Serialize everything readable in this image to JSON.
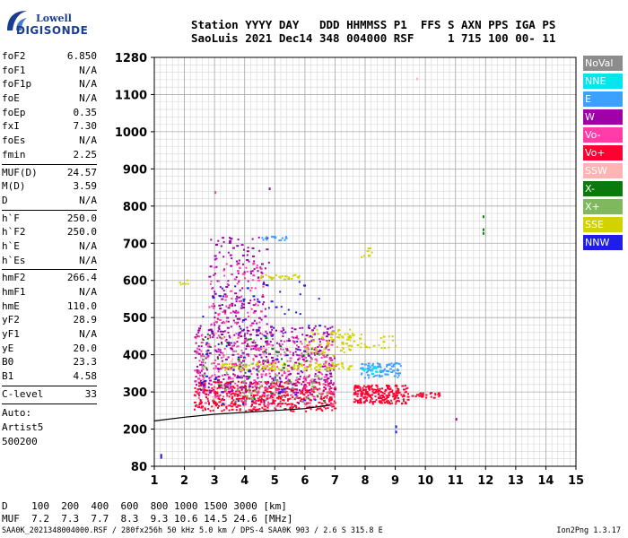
{
  "logo": {
    "line1": "Lowell",
    "line2": "DIGISONDE"
  },
  "header": {
    "labels": "Station YYYY DAY   DDD HHMMSS P1  FFS S AXN PPS IGA PS",
    "values": "SaoLuis 2021 Dec14 348 004000 RSF     1 715 100 00- 11"
  },
  "params": {
    "group1": [
      {
        "name": "foF2",
        "value": "6.850"
      },
      {
        "name": "foF1",
        "value": "N/A"
      },
      {
        "name": "foF1p",
        "value": "N/A"
      },
      {
        "name": "foE",
        "value": "N/A"
      },
      {
        "name": "foEp",
        "value": "0.35"
      },
      {
        "name": "fxI",
        "value": "7.30"
      },
      {
        "name": "foEs",
        "value": "N/A"
      },
      {
        "name": "fmin",
        "value": "2.25"
      }
    ],
    "group2": [
      {
        "name": "MUF(D)",
        "value": "24.57"
      },
      {
        "name": "M(D)",
        "value": "3.59"
      },
      {
        "name": "D",
        "value": "N/A"
      }
    ],
    "group3": [
      {
        "name": "h`F",
        "value": "250.0"
      },
      {
        "name": "h`F2",
        "value": "250.0"
      },
      {
        "name": "h`E",
        "value": "N/A"
      },
      {
        "name": "h`Es",
        "value": "N/A"
      }
    ],
    "group4": [
      {
        "name": "hmF2",
        "value": "266.4"
      },
      {
        "name": "hmF1",
        "value": "N/A"
      },
      {
        "name": "hmE",
        "value": "110.0"
      },
      {
        "name": "yF2",
        "value": "28.9"
      },
      {
        "name": "yF1",
        "value": "N/A"
      },
      {
        "name": "yE",
        "value": "20.0"
      },
      {
        "name": "B0",
        "value": "23.3"
      },
      {
        "name": "B1",
        "value": "4.58"
      }
    ],
    "group5": [
      {
        "name": "C-level",
        "value": "33"
      }
    ],
    "auto": [
      "Auto:",
      "Artist5",
      "500200"
    ]
  },
  "legend": [
    {
      "label": "NoVal",
      "color": "#8c8c8c"
    },
    {
      "label": "NNE",
      "color": "#00e5ee"
    },
    {
      "label": "E",
      "color": "#3ca0ff"
    },
    {
      "label": "W",
      "color": "#a000a8"
    },
    {
      "label": "Vo-",
      "color": "#ff3ca8"
    },
    {
      "label": "Vo+",
      "color": "#ff0030"
    },
    {
      "label": "SSW",
      "color": "#ffb4b4"
    },
    {
      "label": "X-",
      "color": "#0a7a0a"
    },
    {
      "label": "X+",
      "color": "#80b860"
    },
    {
      "label": "SSE",
      "color": "#d2d200"
    },
    {
      "label": "NNW",
      "color": "#1e1ee6"
    }
  ],
  "chart_data": {
    "type": "scatter",
    "xlim": [
      1,
      15
    ],
    "ylim": [
      80,
      1280
    ],
    "x_ticks": [
      1,
      2,
      3,
      4,
      5,
      6,
      7,
      8,
      9,
      10,
      11,
      12,
      13,
      14,
      15
    ],
    "y_ticks": [
      80,
      200,
      300,
      400,
      500,
      600,
      700,
      800,
      900,
      1000,
      1100,
      1280
    ],
    "grid": true,
    "profile": [
      [
        1.0,
        222
      ],
      [
        2.0,
        232
      ],
      [
        3.0,
        240
      ],
      [
        4.0,
        245
      ],
      [
        5.0,
        250
      ],
      [
        6.0,
        255
      ],
      [
        6.85,
        265
      ]
    ],
    "clusters": [
      {
        "color_ref": 5,
        "x": [
          2.3,
          7.0
        ],
        "y": [
          250,
          330
        ],
        "n": 500
      },
      {
        "color_ref": 5,
        "x": [
          7.6,
          9.4
        ],
        "y": [
          270,
          320
        ],
        "n": 220
      },
      {
        "color_ref": 5,
        "x": [
          9.4,
          10.5
        ],
        "y": [
          285,
          300
        ],
        "n": 25
      },
      {
        "color_ref": 3,
        "x": [
          2.3,
          7.0
        ],
        "y": [
          300,
          480
        ],
        "n": 420
      },
      {
        "color_ref": 3,
        "x": [
          2.8,
          4.8
        ],
        "y": [
          450,
          720
        ],
        "n": 160
      },
      {
        "color_ref": 4,
        "x": [
          2.3,
          7.0
        ],
        "y": [
          260,
          460
        ],
        "n": 320
      },
      {
        "color_ref": 4,
        "x": [
          2.8,
          4.6
        ],
        "y": [
          480,
          650
        ],
        "n": 80
      },
      {
        "color_ref": 9,
        "x": [
          3.2,
          7.5
        ],
        "y": [
          360,
          380
        ],
        "n": 120
      },
      {
        "color_ref": 9,
        "x": [
          6.0,
          7.5
        ],
        "y": [
          400,
          470
        ],
        "n": 60
      },
      {
        "color_ref": 9,
        "x": [
          7.0,
          9.0
        ],
        "y": [
          420,
          460
        ],
        "n": 40
      },
      {
        "color_ref": 9,
        "x": [
          4.5,
          5.8
        ],
        "y": [
          605,
          618
        ],
        "n": 25
      },
      {
        "color_ref": 9,
        "x": [
          7.8,
          8.2
        ],
        "y": [
          660,
          690
        ],
        "n": 8
      },
      {
        "color_ref": 9,
        "x": [
          1.8,
          2.1
        ],
        "y": [
          590,
          605
        ],
        "n": 6
      },
      {
        "color_ref": 2,
        "x": [
          7.8,
          9.2
        ],
        "y": [
          340,
          380
        ],
        "n": 80
      },
      {
        "color_ref": 2,
        "x": [
          4.3,
          5.4
        ],
        "y": [
          710,
          720
        ],
        "n": 15
      },
      {
        "color_ref": 1,
        "x": [
          7.9,
          8.5
        ],
        "y": [
          350,
          370
        ],
        "n": 15
      },
      {
        "color_ref": 10,
        "x": [
          2.5,
          6.5
        ],
        "y": [
          270,
          600
        ],
        "n": 90
      },
      {
        "color_ref": 7,
        "x": [
          2.5,
          6.8
        ],
        "y": [
          270,
          460
        ],
        "n": 50
      },
      {
        "color_ref": 8,
        "x": [
          2.5,
          6.8
        ],
        "y": [
          280,
          380
        ],
        "n": 40
      },
      {
        "color_ref": 0,
        "x": [
          2.5,
          6.8
        ],
        "y": [
          270,
          420
        ],
        "n": 40
      },
      {
        "color_ref": 6,
        "x": [
          2.5,
          6.8
        ],
        "y": [
          270,
          460
        ],
        "n": 40
      }
    ],
    "points": [
      {
        "x": 1.2,
        "y": 120,
        "color_ref": 10
      },
      {
        "x": 1.2,
        "y": 113,
        "color_ref": 10
      },
      {
        "x": 11.0,
        "y": 230,
        "color_ref": 3
      },
      {
        "x": 11.9,
        "y": 775,
        "color_ref": 7
      },
      {
        "x": 11.9,
        "y": 740,
        "color_ref": 7
      },
      {
        "x": 11.9,
        "y": 730,
        "color_ref": 7
      },
      {
        "x": 9.7,
        "y": 1182,
        "color_ref": 6
      },
      {
        "x": 9.0,
        "y": 195,
        "color_ref": 10
      },
      {
        "x": 9.0,
        "y": 210,
        "color_ref": 10
      },
      {
        "x": 4.8,
        "y": 850,
        "color_ref": 3
      },
      {
        "x": 3.0,
        "y": 840,
        "color_ref": 4
      }
    ]
  },
  "footer": {
    "d_line": "D    100  200  400  600  800 1000 1500 3000 [km]",
    "muf_line": "MUF  7.2  7.3  7.7  8.3  9.3 10.6 14.5 24.6 [MHz]",
    "file_line": "SAA0K_2021348004000.RSF / 280fx256h 50 kHz 5.0 km / DPS-4 SAA0K 903 / 2.6 S 315.8 E",
    "version": "Ion2Png 1.3.17"
  }
}
